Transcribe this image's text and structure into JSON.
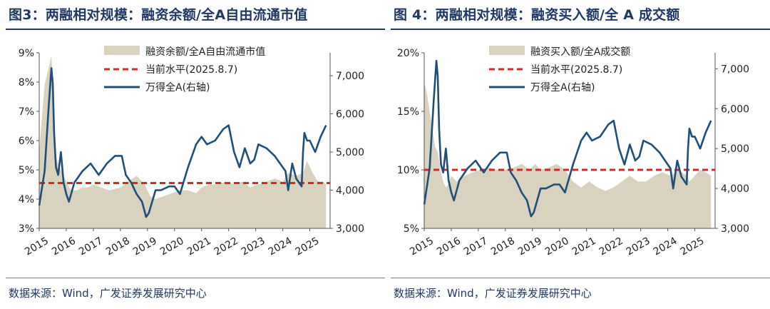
{
  "charts": [
    {
      "title": "图3：两融相对规模：融资余额/全A自由流通市值",
      "source": "数据来源：Wind，广发证券发展研究中心",
      "legend": {
        "area": "融资余额/全A自由流通市值",
        "ref": "当前水平(2025.8.7)",
        "line": "万得全A(右轴)"
      }
    },
    {
      "title": "图 4：两融相对规模：融资买入额/全 A 成交额",
      "source": "数据来源：Wind，广发证券发展研究中心",
      "legend": {
        "area": "融资买入额/全A成交额",
        "ref": "当前水平(2025.8.7)",
        "line": "万得全A(右轴)"
      }
    }
  ],
  "colors": {
    "area": "#d8d2bf",
    "ref": "#d62728",
    "line": "#1f4e79",
    "title": "#1f3864"
  },
  "chart_data": [
    {
      "type": "area+line",
      "x_axis": {
        "ticks": [
          "2015",
          "2016",
          "2017",
          "2018",
          "2019",
          "2020",
          "2021",
          "2022",
          "2023",
          "2024",
          "2025"
        ]
      },
      "y_left": {
        "ticks": [
          "3%",
          "4%",
          "5%",
          "6%",
          "7%",
          "8%",
          "9%"
        ],
        "min": 3,
        "max": 9,
        "unit": "%"
      },
      "y_right": {
        "ticks": [
          "3,000",
          "4,000",
          "5,000",
          "6,000",
          "7,000"
        ],
        "min": 3000,
        "max": 7600
      },
      "reference_line": {
        "name": "当前水平(2025.8.7)",
        "value": 4.55
      },
      "area_series": {
        "name": "融资余额/全A自由流通市值",
        "x": [
          2015.0,
          2015.1,
          2015.2,
          2015.3,
          2015.4,
          2015.45,
          2015.5,
          2015.55,
          2015.6,
          2015.7,
          2015.8,
          2015.9,
          2016.0,
          2016.1,
          2016.2,
          2016.4,
          2016.6,
          2016.8,
          2017.0,
          2017.3,
          2017.6,
          2018.0,
          2018.3,
          2018.6,
          2018.9,
          2019.1,
          2019.3,
          2019.6,
          2019.9,
          2020.2,
          2020.5,
          2020.8,
          2021.0,
          2021.3,
          2021.6,
          2021.9,
          2022.2,
          2022.5,
          2022.8,
          2023.1,
          2023.4,
          2023.7,
          2024.0,
          2024.2,
          2024.5,
          2024.75,
          2024.9,
          2025.1,
          2025.3,
          2025.5,
          2025.6
        ],
        "y": [
          5.6,
          6.8,
          7.9,
          8.3,
          8.7,
          8.9,
          8.0,
          6.5,
          5.5,
          5.2,
          5.0,
          4.8,
          4.6,
          4.4,
          4.3,
          4.3,
          4.4,
          4.4,
          4.5,
          4.4,
          4.3,
          4.4,
          4.6,
          4.8,
          4.5,
          4.1,
          4.0,
          4.1,
          4.2,
          4.3,
          4.3,
          4.2,
          4.4,
          4.5,
          4.5,
          4.6,
          4.5,
          4.6,
          4.4,
          4.5,
          4.6,
          4.7,
          4.6,
          4.9,
          4.8,
          4.9,
          5.3,
          4.9,
          4.6,
          4.6,
          4.5
        ]
      },
      "line_series": {
        "name": "万得全A(右轴)",
        "x": [
          2015.0,
          2015.2,
          2015.35,
          2015.45,
          2015.5,
          2015.55,
          2015.62,
          2015.7,
          2015.8,
          2015.9,
          2016.0,
          2016.1,
          2016.3,
          2016.6,
          2016.9,
          2017.2,
          2017.5,
          2017.8,
          2018.05,
          2018.2,
          2018.4,
          2018.6,
          2018.8,
          2018.95,
          2019.05,
          2019.3,
          2019.5,
          2019.8,
          2020.0,
          2020.2,
          2020.5,
          2020.8,
          2021.0,
          2021.2,
          2021.5,
          2021.8,
          2022.0,
          2022.2,
          2022.4,
          2022.6,
          2022.8,
          2022.95,
          2023.1,
          2023.4,
          2023.7,
          2023.9,
          2024.1,
          2024.2,
          2024.35,
          2024.5,
          2024.7,
          2024.75,
          2024.8,
          2024.9,
          2025.0,
          2025.2,
          2025.4,
          2025.6
        ],
        "y": [
          3600,
          4500,
          6200,
          7200,
          6800,
          5500,
          4600,
          4400,
          5000,
          4200,
          3900,
          3700,
          4200,
          4500,
          4700,
          4400,
          4700,
          4900,
          4900,
          4400,
          4200,
          3900,
          3700,
          3300,
          3400,
          4000,
          4000,
          4100,
          4100,
          3900,
          4600,
          5200,
          5400,
          5200,
          5300,
          5600,
          5700,
          5000,
          4600,
          5100,
          4700,
          4800,
          5200,
          5100,
          4900,
          4700,
          4500,
          4000,
          4700,
          4300,
          4100,
          5000,
          5500,
          5300,
          5300,
          5000,
          5400,
          5700
        ]
      }
    },
    {
      "type": "area+line",
      "x_axis": {
        "ticks": [
          "2015",
          "2016",
          "2017",
          "2018",
          "2019",
          "2020",
          "2021",
          "2022",
          "2023",
          "2024",
          "2025"
        ]
      },
      "y_left": {
        "ticks": [
          "5%",
          "10%",
          "15%",
          "20%"
        ],
        "min": 5,
        "max": 20,
        "unit": "%"
      },
      "y_right": {
        "ticks": [
          "3,000",
          "4,000",
          "5,000",
          "6,000",
          "7,000"
        ],
        "min": 3000,
        "max": 7400
      },
      "reference_line": {
        "name": "当前水平(2025.8.7)",
        "value": 10.0
      },
      "area_series": {
        "name": "融资买入额/全A成交额",
        "x": [
          2015.0,
          2015.1,
          2015.2,
          2015.3,
          2015.4,
          2015.5,
          2015.6,
          2015.7,
          2015.8,
          2015.9,
          2016.0,
          2016.2,
          2016.5,
          2016.8,
          2017.1,
          2017.4,
          2017.7,
          2018.0,
          2018.3,
          2018.6,
          2018.9,
          2019.1,
          2019.3,
          2019.6,
          2019.9,
          2020.2,
          2020.5,
          2020.8,
          2021.1,
          2021.4,
          2021.7,
          2022.0,
          2022.3,
          2022.6,
          2022.9,
          2023.2,
          2023.5,
          2023.8,
          2024.1,
          2024.4,
          2024.7,
          2024.8,
          2025.0,
          2025.2,
          2025.4,
          2025.6
        ],
        "y": [
          17.5,
          16.5,
          15.0,
          13.5,
          12.0,
          11.5,
          10.0,
          9.0,
          8.5,
          8.8,
          9.5,
          9.0,
          9.5,
          9.8,
          10.0,
          10.2,
          10.0,
          10.0,
          10.2,
          10.5,
          10.0,
          10.5,
          10.0,
          10.2,
          10.5,
          10.0,
          9.0,
          8.5,
          9.0,
          8.5,
          8.2,
          8.5,
          9.0,
          9.5,
          9.0,
          9.0,
          9.5,
          9.8,
          9.5,
          10.0,
          9.5,
          9.0,
          9.5,
          10.0,
          9.8,
          9.5
        ]
      },
      "line_series": {
        "name": "万得全A(右轴)",
        "x": [
          2015.0,
          2015.2,
          2015.35,
          2015.45,
          2015.5,
          2015.55,
          2015.62,
          2015.7,
          2015.8,
          2015.9,
          2016.0,
          2016.1,
          2016.3,
          2016.6,
          2016.9,
          2017.2,
          2017.5,
          2017.8,
          2018.05,
          2018.2,
          2018.4,
          2018.6,
          2018.8,
          2018.95,
          2019.05,
          2019.3,
          2019.5,
          2019.8,
          2020.0,
          2020.2,
          2020.5,
          2020.8,
          2021.0,
          2021.2,
          2021.5,
          2021.8,
          2022.0,
          2022.2,
          2022.4,
          2022.6,
          2022.8,
          2022.95,
          2023.1,
          2023.4,
          2023.7,
          2023.9,
          2024.1,
          2024.2,
          2024.35,
          2024.5,
          2024.7,
          2024.75,
          2024.8,
          2024.9,
          2025.0,
          2025.2,
          2025.4,
          2025.6
        ],
        "y": [
          3600,
          4500,
          6200,
          7200,
          6800,
          5500,
          4600,
          4400,
          5000,
          4200,
          3900,
          3700,
          4200,
          4500,
          4700,
          4400,
          4700,
          4900,
          4900,
          4400,
          4200,
          3900,
          3700,
          3300,
          3400,
          4000,
          4000,
          4100,
          4100,
          3900,
          4600,
          5200,
          5400,
          5200,
          5300,
          5600,
          5700,
          5000,
          4600,
          5100,
          4700,
          4800,
          5200,
          5100,
          4900,
          4700,
          4500,
          4000,
          4700,
          4300,
          4100,
          5000,
          5500,
          5300,
          5300,
          5000,
          5400,
          5700
        ]
      }
    }
  ]
}
